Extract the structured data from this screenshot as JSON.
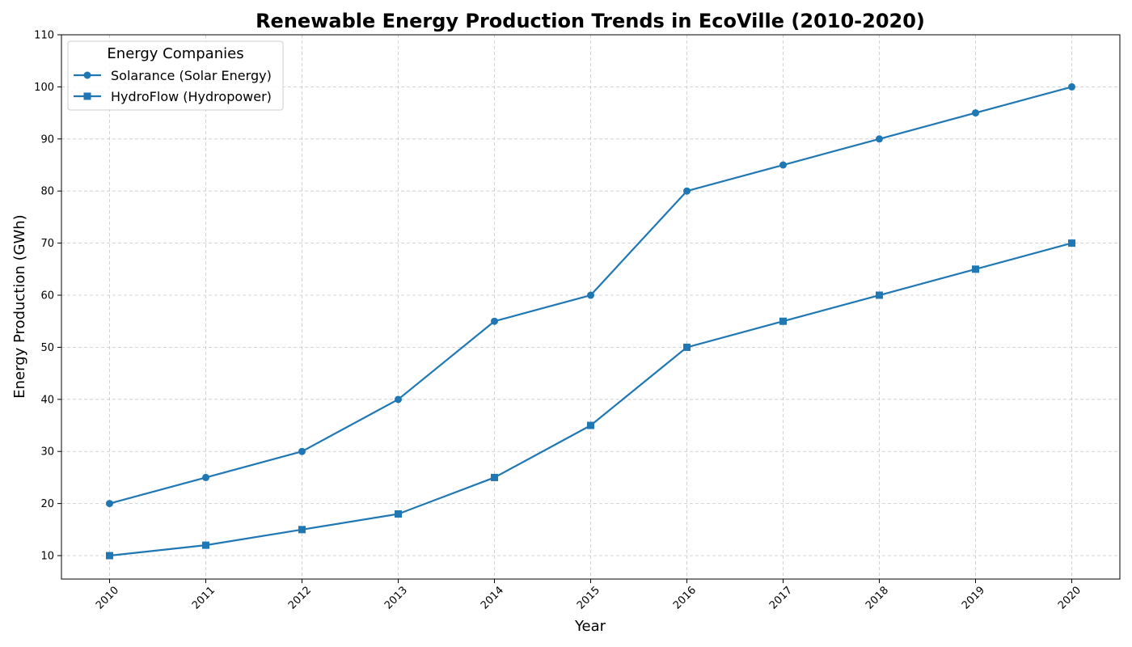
{
  "chart_data": {
    "type": "line",
    "title": "Renewable Energy Production Trends in EcoVille (2010-2020)",
    "xlabel": "Year",
    "ylabel": "Energy Production (GWh)",
    "x": [
      "2010",
      "2011",
      "2012",
      "2013",
      "2014",
      "2015",
      "2016",
      "2017",
      "2018",
      "2019",
      "2020"
    ],
    "ylim": [
      5.5,
      110
    ],
    "yticks": [
      10,
      20,
      30,
      40,
      50,
      60,
      70,
      80,
      90,
      100,
      110
    ],
    "grid": true,
    "legend": {
      "title": "Energy Companies",
      "placement": "top-left"
    },
    "series": [
      {
        "name": "Solarance (Solar Energy)",
        "marker": "circle",
        "color": "#1f77b4",
        "values": [
          20,
          25,
          30,
          40,
          55,
          60,
          80,
          85,
          90,
          95,
          100
        ]
      },
      {
        "name": "HydroFlow (Hydropower)",
        "marker": "square",
        "color": "#1f77b4",
        "values": [
          10,
          12,
          15,
          18,
          25,
          35,
          50,
          55,
          60,
          65,
          70
        ]
      }
    ]
  }
}
